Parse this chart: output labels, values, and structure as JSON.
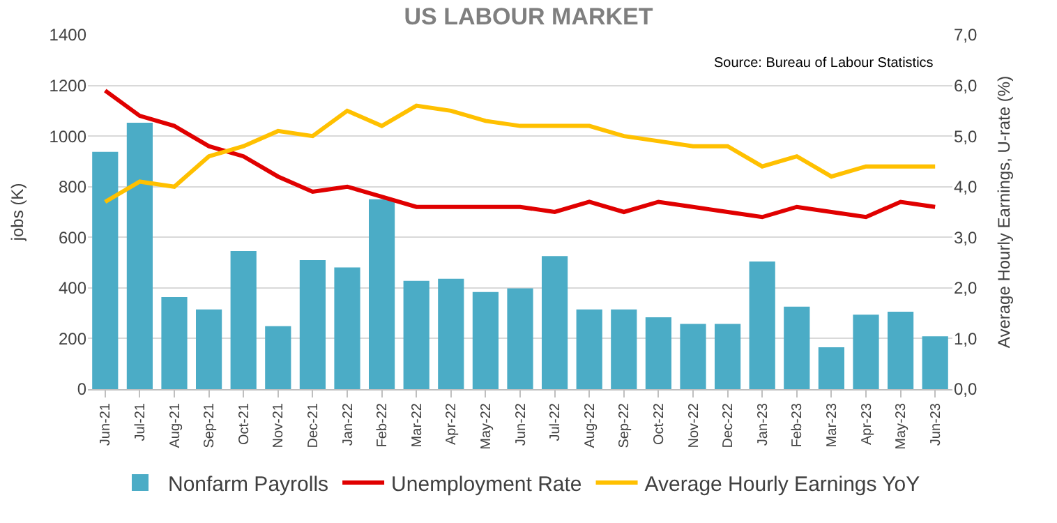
{
  "chart_data": {
    "type": "bar",
    "title": "US LABOUR MARKET",
    "ylabel": "jobs (K)",
    "y2label": "Average Hourly Earnings, U-rate (%)",
    "annotations": [
      "Source: Bureau of Labour Statistics"
    ],
    "categories": [
      "Jun-21",
      "Jul-21",
      "Aug-21",
      "Sep-21",
      "Oct-21",
      "Nov-21",
      "Dec-21",
      "Jan-22",
      "Feb-22",
      "Mar-22",
      "Apr-22",
      "May-22",
      "Jun-22",
      "Jul-22",
      "Aug-22",
      "Sep-22",
      "Oct-22",
      "Nov-22",
      "Dec-22",
      "Jan-23",
      "Feb-23",
      "Mar-23",
      "Apr-23",
      "May-23",
      "Jun-23"
    ],
    "series": [
      {
        "name": "Nonfarm Payrolls",
        "color": "#4bacc6",
        "values": [
          938,
          1053,
          364,
          315,
          546,
          249,
          510,
          481,
          750,
          428,
          436,
          384,
          398,
          526,
          315,
          315,
          284,
          258,
          258,
          504,
          326,
          165,
          294,
          306,
          209
        ]
      },
      {
        "name": "Unemployment Rate",
        "type": "line",
        "axis": "y2",
        "color": "#e00000",
        "values": [
          5.9,
          5.4,
          5.2,
          4.8,
          4.6,
          4.2,
          3.9,
          4.0,
          3.8,
          3.6,
          3.6,
          3.6,
          3.6,
          3.5,
          3.7,
          3.5,
          3.7,
          3.6,
          3.5,
          3.4,
          3.6,
          3.5,
          3.4,
          3.7,
          3.6
        ]
      },
      {
        "name": "Average Hourly Earnings YoY",
        "type": "line",
        "axis": "y2",
        "color": "#ffc000",
        "values": [
          3.7,
          4.1,
          4.0,
          4.6,
          4.8,
          5.1,
          5.0,
          5.5,
          5.2,
          5.6,
          5.5,
          5.3,
          5.2,
          5.2,
          5.2,
          5.0,
          4.9,
          4.8,
          4.8,
          4.4,
          4.6,
          4.2,
          4.4,
          4.4,
          4.4
        ]
      }
    ],
    "ylim": [
      0,
      1400
    ],
    "yticks": [
      0,
      200,
      400,
      600,
      800,
      1000,
      1200,
      1400
    ],
    "y2lim": [
      0,
      7
    ],
    "y2ticks": [
      {
        "value": 0,
        "label": "0,0"
      },
      {
        "value": 1,
        "label": "1,0"
      },
      {
        "value": 2,
        "label": "2,0"
      },
      {
        "value": 3,
        "label": "3,0"
      },
      {
        "value": 4,
        "label": "4,0"
      },
      {
        "value": 5,
        "label": "5,0"
      },
      {
        "value": 6,
        "label": "6,0"
      },
      {
        "value": 7,
        "label": "7,0"
      }
    ],
    "grid": "y",
    "legend": "bottom",
    "marker": "none",
    "line_style": "solid"
  }
}
